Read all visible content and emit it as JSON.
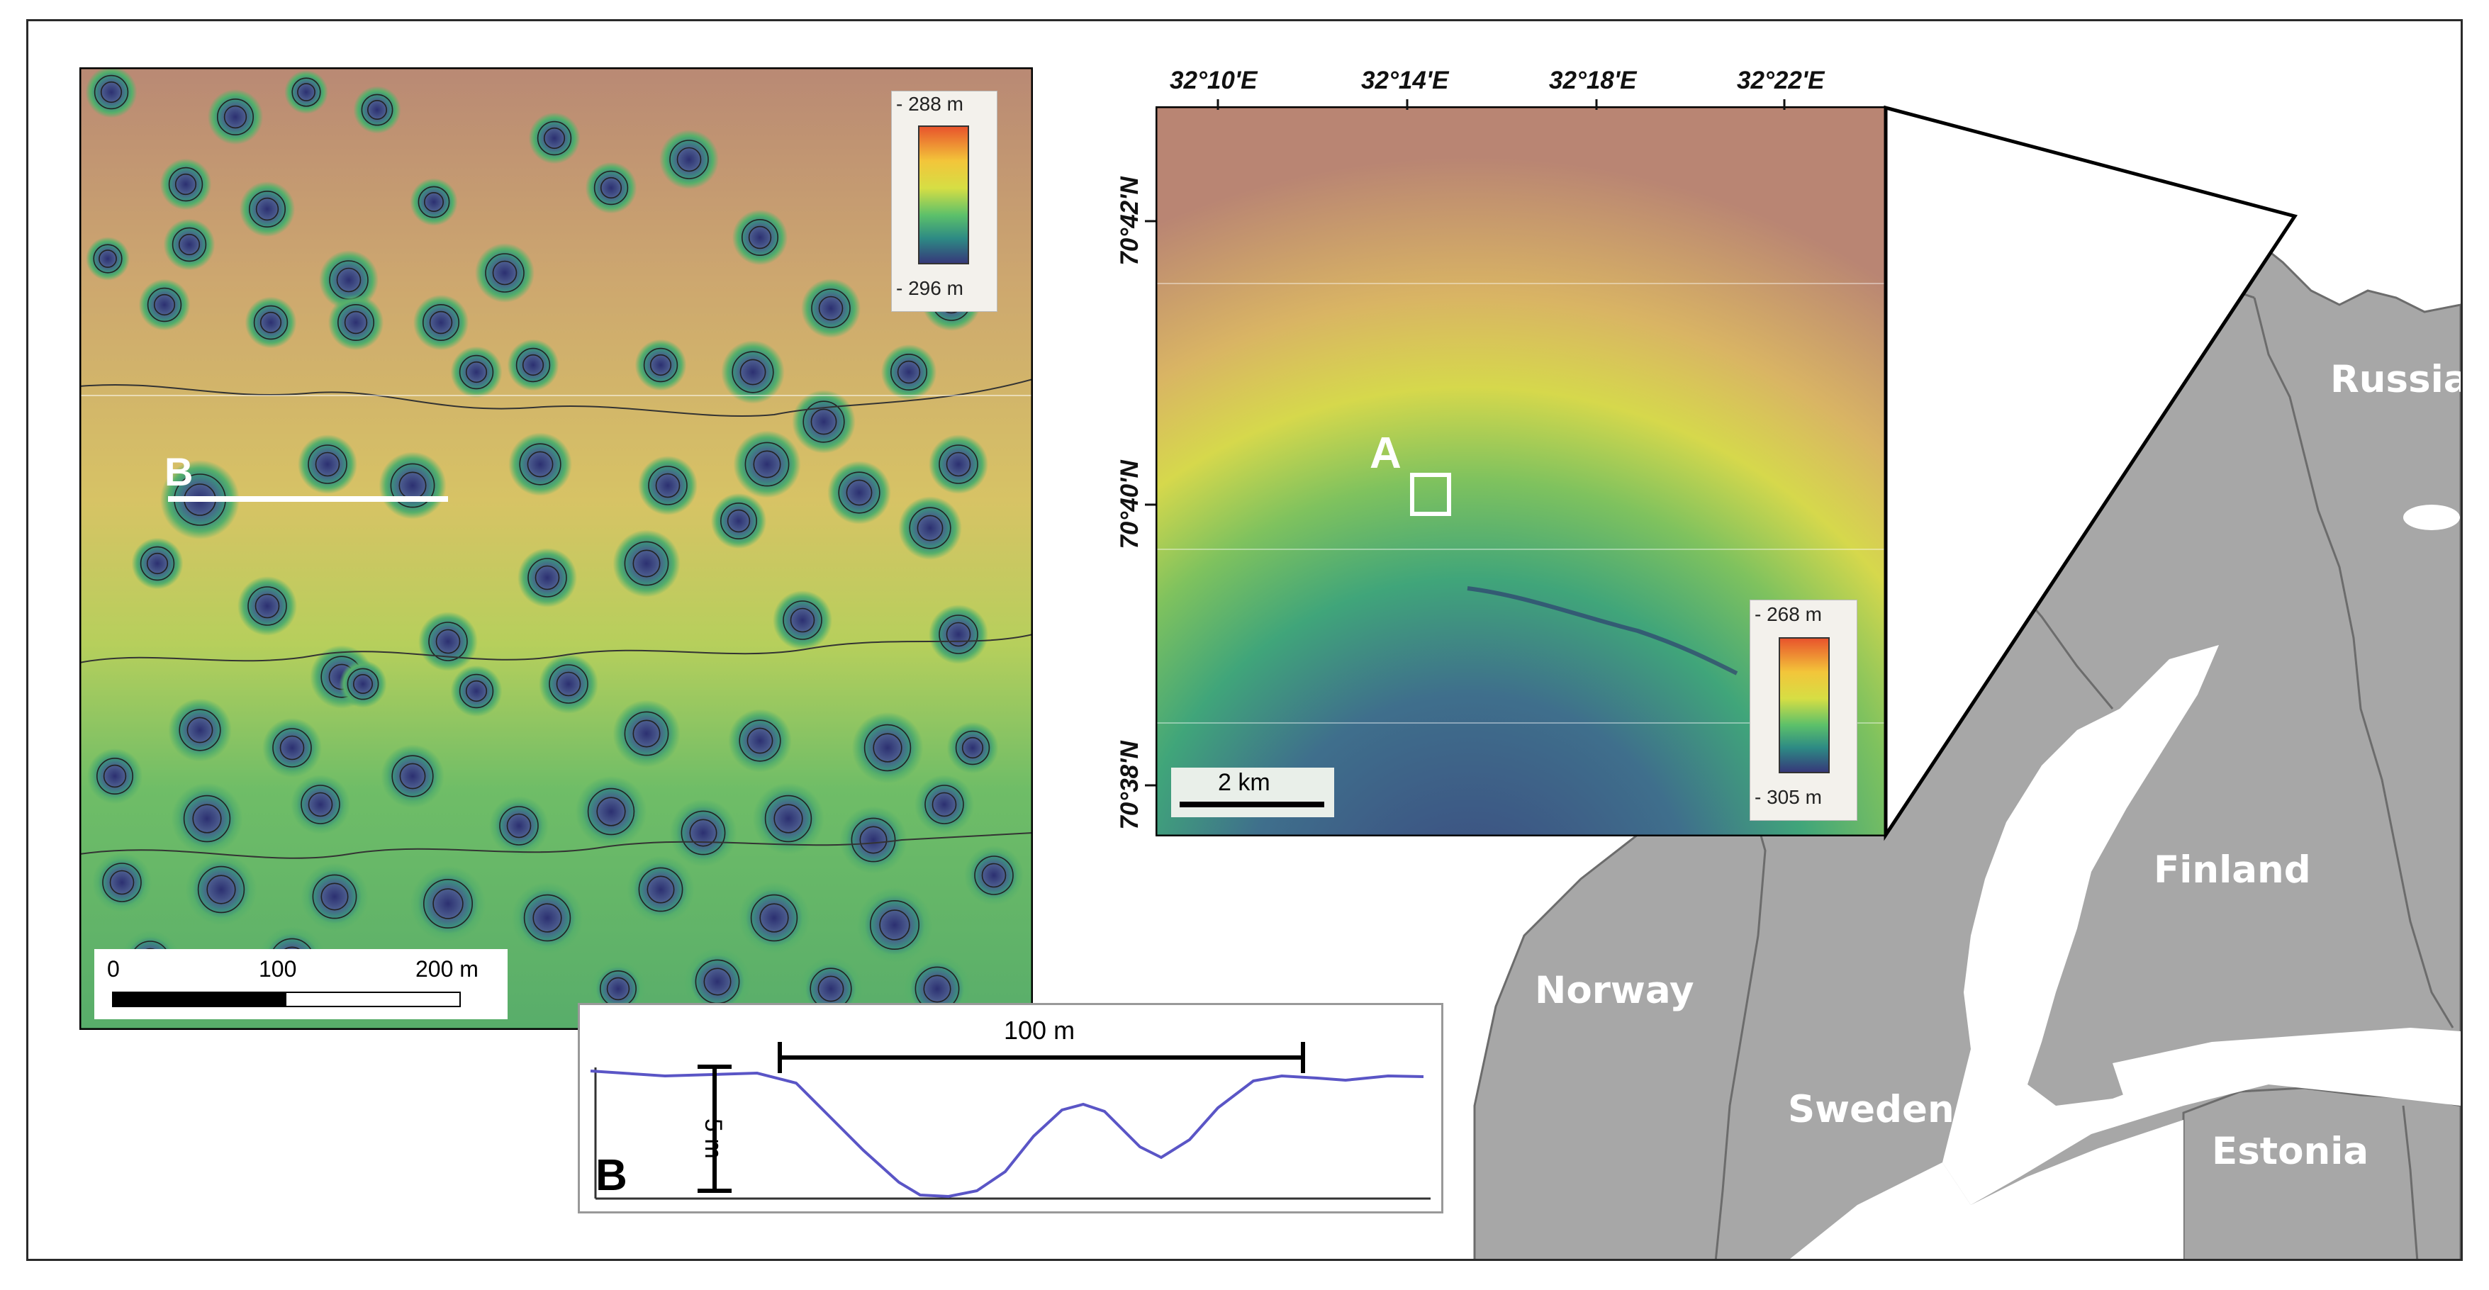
{
  "panel_a_detail": {
    "legend": {
      "max": "- 288 m",
      "min": "- 296 m",
      "colors": [
        "#e8542c",
        "#f3c53a",
        "#d6de44",
        "#5cc06a",
        "#2d8a84",
        "#36397a"
      ]
    },
    "profile_label": "B",
    "scale_labels": [
      "0",
      "100",
      "200 m"
    ],
    "terrain_colors": {
      "high": "#b98974",
      "mid": "#d7c365",
      "low": "#58ad6a",
      "pit": "#3c3f7d"
    }
  },
  "panel_a_overview": {
    "label": "A",
    "lon_ticks": [
      "32°10'E",
      "32°14'E",
      "32°18'E",
      "32°22'E"
    ],
    "lat_ticks": [
      "70°42'N",
      "70°40'N",
      "70°38'N"
    ],
    "legend": {
      "max": "- 268 m",
      "min": "- 305 m"
    },
    "scale_label": "2 km"
  },
  "profile_b": {
    "label": "B",
    "horizontal_scale": "100 m",
    "vertical_scale": "5 m",
    "line_color": "#5a55c6"
  },
  "map": {
    "land_color": "#a7a7a7",
    "countries": [
      "Russia",
      "Finland",
      "Norway",
      "Sweden",
      "Estonia"
    ]
  }
}
